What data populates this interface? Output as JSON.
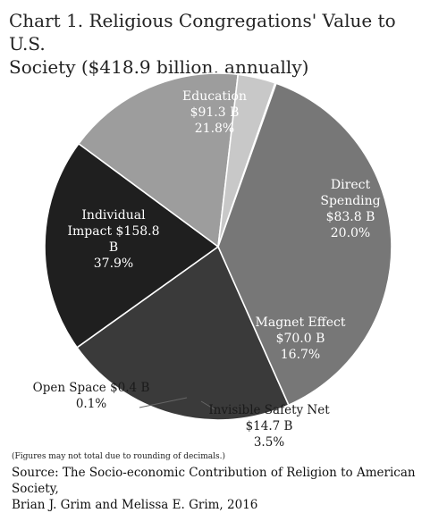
{
  "chart_data": {
    "type": "pie",
    "title_lines": [
      "Chart 1. Religious Congregations' Value to U.S.",
      "Society ($418.9 billion, annually)"
    ],
    "total": 418.9,
    "slices": [
      {
        "name": "Education",
        "lines": [
          "Education",
          "$91.3 B",
          "21.8%"
        ],
        "value": 91.3,
        "percent": 21.8,
        "color": "#3a3a3a",
        "label_color": "#ffffff"
      },
      {
        "name": "Direct Spending",
        "lines": [
          "Direct",
          "Spending",
          "$83.8 B",
          "20.0%"
        ],
        "value": 83.8,
        "percent": 20.0,
        "color": "#1f1f1f",
        "label_color": "#ffffff"
      },
      {
        "name": "Magnet Effect",
        "lines": [
          "Magnet Effect",
          "$70.0 B",
          "16.7%"
        ],
        "value": 70.0,
        "percent": 16.7,
        "color": "#9d9d9d",
        "label_color": "#ffffff"
      },
      {
        "name": "Invisible Safety Net",
        "lines": [
          "Invisible Safety Net",
          "$14.7 B",
          "3.5%"
        ],
        "value": 14.7,
        "percent": 3.5,
        "color": "#c8c8c8",
        "label_color": "#1a1a1a"
      },
      {
        "name": "Open Space",
        "lines": [
          "Open Space $0.4 B",
          "0.1%"
        ],
        "value": 0.4,
        "percent": 0.1,
        "color": "#e0e0e0",
        "label_color": "#1a1a1a"
      },
      {
        "name": "Individual Impact",
        "lines": [
          "Individual",
          "Impact $158.8",
          "B",
          "37.9%"
        ],
        "value": 158.8,
        "percent": 37.9,
        "color": "#777777",
        "label_color": "#ffffff"
      }
    ],
    "note": "(Figures may not total due to rounding of decimals.)",
    "source_lines": [
      "Source: The Socio-economic Contribution of Religion to American Society,",
      "Brian J. Grim and Melissa E. Grim, 2016"
    ]
  }
}
